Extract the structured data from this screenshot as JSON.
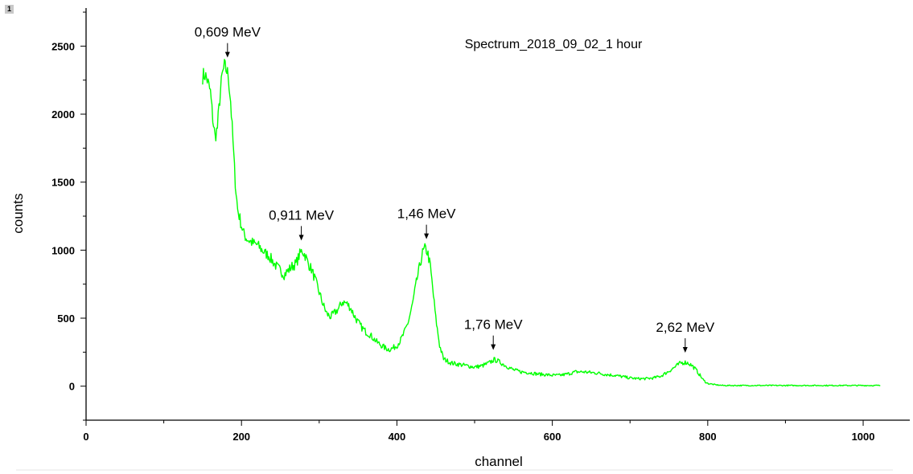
{
  "layer_label": "1",
  "chart_data": {
    "type": "line",
    "title": "Spectrum_2018_09_02_1 hour",
    "xlabel": "channel",
    "ylabel": "counts",
    "xlim": [
      0,
      1060
    ],
    "ylim": [
      -250,
      2780
    ],
    "xticks": [
      0,
      200,
      400,
      600,
      800,
      1000
    ],
    "yticks": [
      0,
      500,
      1000,
      1500,
      2000,
      2500
    ],
    "x_minor_step": 100,
    "y_minor_step": 250,
    "grid": false,
    "legend": "none",
    "line_color": "#00ff00",
    "series": [
      {
        "x": [
          150,
          153,
          156,
          160,
          163,
          166,
          169,
          172,
          175,
          178,
          181,
          183,
          186,
          189,
          192,
          195,
          198,
          200,
          203,
          206,
          210,
          215,
          220,
          225,
          230,
          235,
          240,
          245,
          250,
          255,
          260,
          265,
          270,
          275,
          278,
          282,
          286,
          290,
          295,
          300,
          305,
          310,
          315,
          320,
          325,
          330,
          335,
          340,
          345,
          350,
          355,
          360,
          365,
          370,
          375,
          380,
          385,
          390,
          395,
          400,
          405,
          410,
          415,
          420,
          425,
          430,
          433,
          436,
          438,
          440,
          443,
          446,
          450,
          455,
          460,
          470,
          480,
          490,
          500,
          510,
          520,
          525,
          530,
          540,
          550,
          560,
          570,
          580,
          590,
          600,
          610,
          620,
          630,
          640,
          650,
          660,
          670,
          680,
          690,
          700,
          710,
          720,
          730,
          740,
          750,
          760,
          765,
          770,
          775,
          780,
          785,
          790,
          795,
          800,
          810,
          820,
          840,
          860,
          880,
          900,
          950,
          1000,
          1022
        ],
        "y": [
          2280,
          2290,
          2250,
          2160,
          1970,
          1830,
          1900,
          2110,
          2280,
          2350,
          2320,
          2280,
          2100,
          1800,
          1500,
          1300,
          1230,
          1180,
          1120,
          1090,
          1070,
          1050,
          1040,
          1010,
          980,
          960,
          920,
          880,
          850,
          820,
          850,
          880,
          900,
          970,
          1000,
          960,
          900,
          860,
          780,
          690,
          600,
          530,
          510,
          540,
          570,
          620,
          610,
          580,
          520,
          470,
          430,
          400,
          380,
          350,
          320,
          300,
          280,
          270,
          280,
          300,
          340,
          400,
          480,
          600,
          760,
          900,
          980,
          1010,
          1000,
          970,
          880,
          720,
          500,
          300,
          200,
          170,
          160,
          150,
          140,
          150,
          175,
          195,
          185,
          150,
          120,
          105,
          100,
          90,
          85,
          80,
          80,
          90,
          105,
          105,
          100,
          95,
          85,
          80,
          70,
          60,
          55,
          55,
          60,
          75,
          110,
          150,
          170,
          175,
          170,
          150,
          120,
          80,
          40,
          20,
          10,
          5,
          5,
          5,
          5,
          5,
          5,
          5,
          5
        ]
      }
    ],
    "annotations": [
      {
        "text": "0,609 MeV",
        "x": 182,
        "y": 2345
      },
      {
        "text": "0,911 MeV",
        "x": 277,
        "y": 1000
      },
      {
        "text": "1,46 MeV",
        "x": 438,
        "y": 1010
      },
      {
        "text": "1,76 MeV",
        "x": 524,
        "y": 195
      },
      {
        "text": "2,62 MeV",
        "x": 771,
        "y": 175
      }
    ]
  }
}
